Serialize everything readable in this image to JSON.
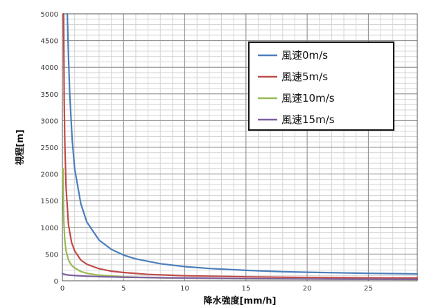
{
  "chart_data": {
    "type": "line",
    "title": "",
    "xlabel": "降水強度[mm/h]",
    "ylabel": "視程[m]",
    "xlim": [
      0,
      29
    ],
    "ylim": [
      0,
      5000
    ],
    "x_ticks": [
      0,
      5,
      10,
      15,
      20,
      25
    ],
    "y_ticks": [
      0,
      500,
      1000,
      1500,
      2000,
      2500,
      3000,
      3500,
      4000,
      4500,
      5000
    ],
    "x_minor_step": 1,
    "y_minor_step": 100,
    "grid": true,
    "legend_position": "top-right",
    "series": [
      {
        "name": "風速0m/s",
        "color": "#4a7ebb",
        "x": [
          0.4,
          0.5,
          0.6,
          0.8,
          1,
          1.5,
          2,
          3,
          4,
          5,
          6,
          8,
          10,
          12,
          15,
          18,
          20,
          25,
          29
        ],
        "y": [
          5000,
          4200,
          3500,
          2650,
          2100,
          1450,
          1100,
          760,
          590,
          480,
          410,
          320,
          265,
          230,
          195,
          170,
          160,
          140,
          130
        ]
      },
      {
        "name": "風速5m/s",
        "color": "#be4b48",
        "x": [
          0.1,
          0.15,
          0.2,
          0.3,
          0.5,
          0.75,
          1,
          1.5,
          2,
          3,
          4,
          5,
          7,
          10,
          15,
          20,
          25,
          29
        ],
        "y": [
          5000,
          3400,
          2600,
          1750,
          1050,
          720,
          560,
          390,
          310,
          225,
          180,
          155,
          120,
          95,
          75,
          62,
          55,
          50
        ]
      },
      {
        "name": "風速10m/s",
        "color": "#98b954",
        "x": [
          0.05,
          0.08,
          0.12,
          0.2,
          0.3,
          0.5,
          0.75,
          1,
          1.5,
          2,
          3,
          5,
          7,
          10,
          15,
          20,
          25,
          29
        ],
        "y": [
          2100,
          1500,
          1100,
          760,
          560,
          390,
          290,
          240,
          175,
          140,
          105,
          75,
          60,
          48,
          38,
          32,
          28,
          25
        ]
      },
      {
        "name": "風速15m/s",
        "color": "#7d5fa0",
        "x": [
          0,
          0.2,
          0.5,
          1,
          2,
          3,
          5,
          8,
          10,
          15,
          20,
          25,
          29
        ],
        "y": [
          135,
          120,
          108,
          98,
          86,
          78,
          68,
          58,
          52,
          42,
          35,
          30,
          27
        ]
      }
    ]
  }
}
